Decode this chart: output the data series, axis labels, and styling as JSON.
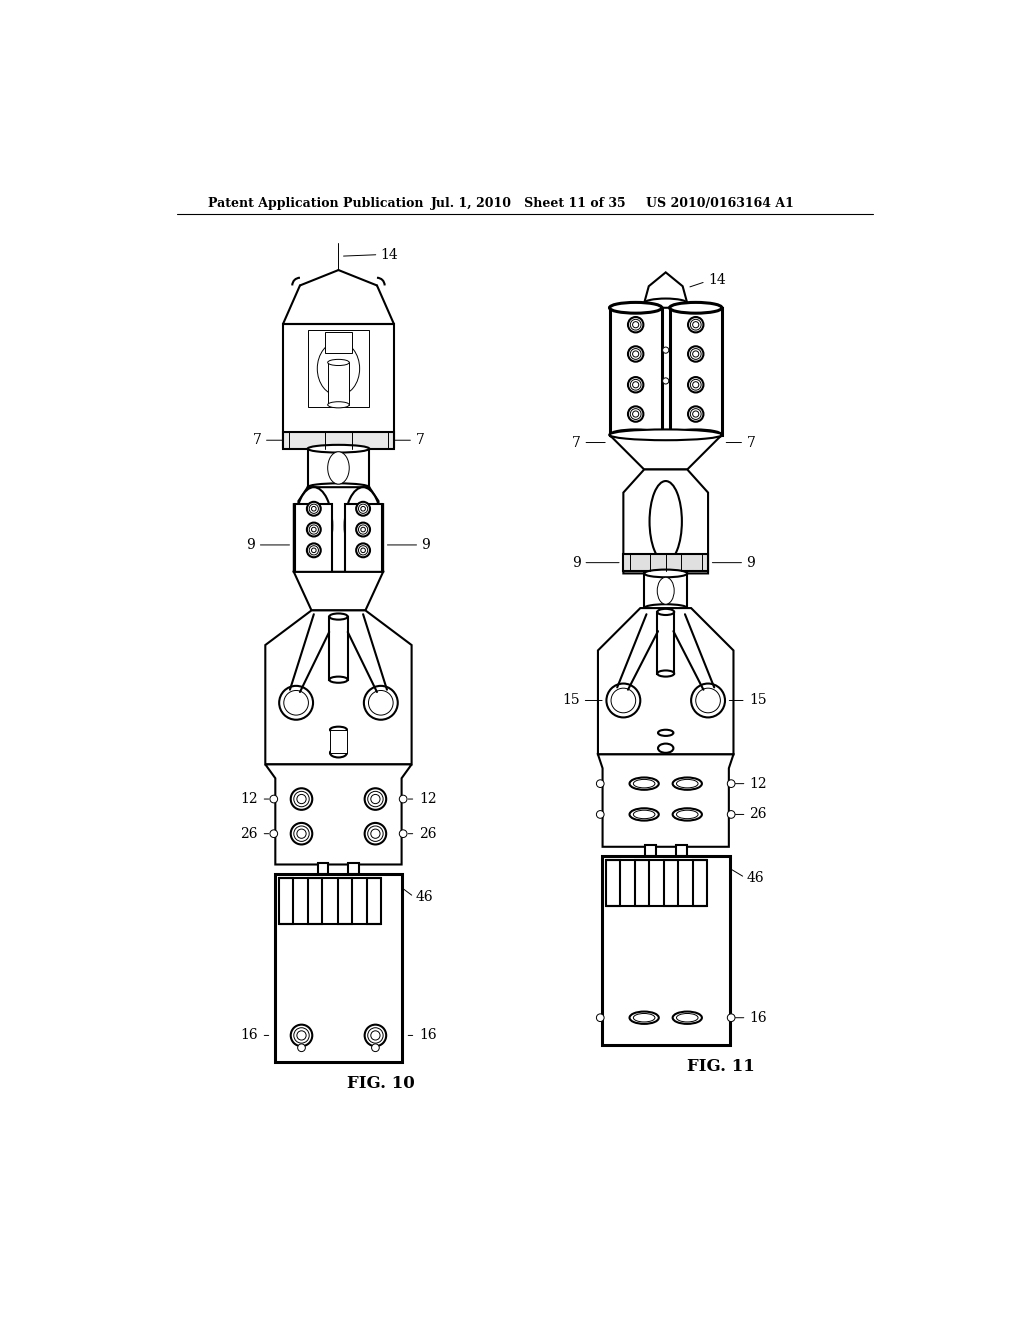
{
  "header_left": "Patent Application Publication",
  "header_mid": "Jul. 1, 2010   Sheet 11 of 35",
  "header_right": "US 2010/0163164 A1",
  "fig10_label": "FIG. 10",
  "fig11_label": "FIG. 11",
  "bg_color": "#ffffff",
  "lc": "#000000",
  "lw": 1.5,
  "lw_thin": 0.7,
  "lw_thick": 2.2
}
